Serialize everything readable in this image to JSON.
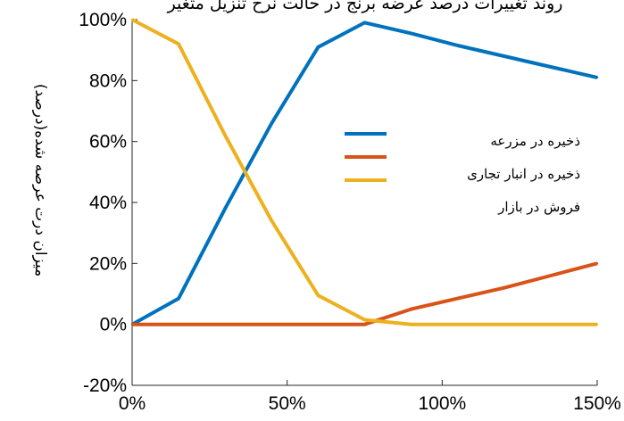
{
  "chart_data": {
    "type": "line",
    "title": "روند تغییرات درصد عرضه برنج در حالت نرخ تنزیل متغیر",
    "xlabel": "",
    "ylabel": "میزان درت عرصه شده(درصد)",
    "xlim": [
      0,
      150
    ],
    "ylim": [
      -20,
      100
    ],
    "x_ticks": [
      0,
      50,
      100,
      150
    ],
    "x_tick_labels": [
      "0%",
      "50%",
      "100%",
      "150%"
    ],
    "y_ticks": [
      -20,
      0,
      20,
      40,
      60,
      80,
      100
    ],
    "y_tick_labels": [
      "-20%",
      "0%",
      "20%",
      "40%",
      "60%",
      "80%",
      "100%"
    ],
    "grid": false,
    "legend_position": "center-right",
    "series": [
      {
        "name": "ذخیره در مزرعه",
        "color": "#0072BD",
        "x": [
          0,
          15,
          30,
          45,
          60,
          75,
          90,
          105,
          120,
          135,
          150
        ],
        "y": [
          0,
          8.5,
          38,
          66,
          91,
          99,
          95.5,
          91.5,
          88,
          84.5,
          81
        ]
      },
      {
        "name": "ذخیره در انبار تجاری",
        "color": "#D95319",
        "x": [
          0,
          15,
          30,
          45,
          60,
          75,
          90,
          105,
          120,
          135,
          150
        ],
        "y": [
          0,
          0,
          0,
          0,
          0,
          0,
          5,
          8.5,
          12,
          16,
          20
        ]
      },
      {
        "name": "فروش در بازار",
        "color": "#EDB120",
        "x": [
          0,
          15,
          30,
          45,
          60,
          75,
          90,
          105,
          120,
          135,
          150
        ],
        "y": [
          100,
          92,
          62,
          34,
          9.5,
          1.5,
          0,
          0,
          0,
          0,
          0
        ]
      }
    ]
  }
}
